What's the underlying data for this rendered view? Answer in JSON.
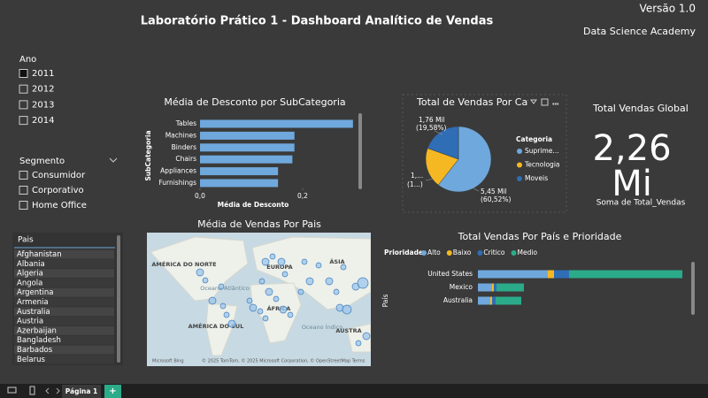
{
  "header": {
    "title": "Laboratório Prático 1 - Dashboard Analítico de Vendas",
    "version": "Versão 1.0",
    "org": "Data Science Academy"
  },
  "slicers": {
    "year": {
      "title": "Ano",
      "options": [
        "2011",
        "2012",
        "2013",
        "2014"
      ]
    },
    "segment": {
      "title": "Segmento",
      "options": [
        "Consumidor",
        "Corporativo",
        "Home Office"
      ]
    },
    "country": {
      "title": "Pais",
      "options": [
        "Afghanistan",
        "Albania",
        "Algeria",
        "Angola",
        "Argentina",
        "Armenia",
        "Australia",
        "Austria",
        "Azerbaijan",
        "Bangladesh",
        "Barbados",
        "Belarus"
      ]
    }
  },
  "kpi": {
    "title": "Total Vendas Global",
    "value": "2,26",
    "unit": "Mi",
    "label": "Soma de Total_Vendas"
  },
  "map": {
    "title": "Média de Vendas Por Pais",
    "labels": [
      "AMÉRICA DO NORTE",
      "EUROPA",
      "ÁSIA",
      "ÁFRICA",
      "AMÉRICA DO SUL",
      "Oceano Atlântico",
      "Oceano Índico",
      "AUSTRA"
    ],
    "attribution": "© 2025 TomTom, © 2025 Microsoft Corporation, © OpenStreetMap  Terms",
    "brand": "Microsoft Bing"
  },
  "chart_data": [
    {
      "type": "bar",
      "orientation": "horizontal",
      "title": "Média de Desconto por SubCategoria",
      "categories": [
        "Tables",
        "Machines",
        "Binders",
        "Chairs",
        "Appliances",
        "Furnishings"
      ],
      "values": [
        0.298,
        0.184,
        0.184,
        0.18,
        0.152,
        0.152
      ],
      "color": "#6fa8dc",
      "xlim": [
        0,
        0.3
      ],
      "xticks": [
        {
          "value": 0,
          "label": "0,0"
        },
        {
          "value": 0.2,
          "label": "0,2"
        }
      ],
      "xlabel": "Média de Desconto",
      "ylabel": "SubCategoria"
    },
    {
      "type": "pie",
      "title": "Total de Vendas Por Categoria",
      "legend_title": "Categoria",
      "categories": [
        "Suprime…",
        "Tecnologia",
        "Moveis"
      ],
      "values": [
        5.45,
        1.79,
        1.76
      ],
      "value_labels": [
        "5,45 Mil",
        "1,...",
        "1,76 Mil"
      ],
      "percent_labels": [
        "(60,52%)",
        "(1...)",
        "(19,58%)"
      ],
      "colors": [
        "#6fa8dc",
        "#f5b823",
        "#2f6db5"
      ]
    },
    {
      "type": "stacked-bar",
      "title": "Total Vendas Por País e Prioridade",
      "legend_title": "Prioridade",
      "ylabel": "País",
      "categories": [
        "United States",
        "Mexico",
        "Australia"
      ],
      "xlim": [
        0,
        240
      ],
      "series": [
        {
          "name": "Alto",
          "color": "#6fa8dc",
          "values": [
            79,
            16,
            14
          ]
        },
        {
          "name": "Baixo",
          "color": "#f5b823",
          "values": [
            7,
            2,
            2
          ]
        },
        {
          "name": "Critico",
          "color": "#2f6db5",
          "values": [
            17,
            3,
            4
          ]
        },
        {
          "name": "Medio",
          "color": "#2bab8a",
          "values": [
            128,
            31,
            29
          ]
        }
      ]
    }
  ],
  "tabs": [
    "Página 1",
    "+"
  ]
}
